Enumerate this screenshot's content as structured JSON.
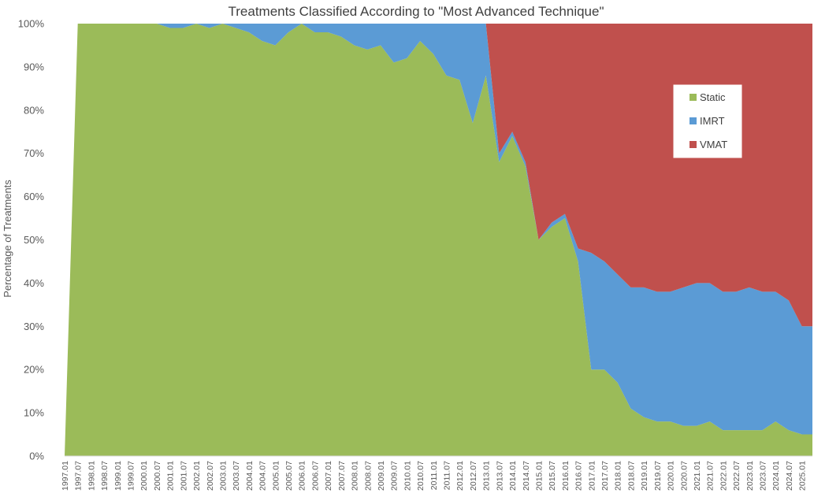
{
  "chart_data": {
    "type": "area",
    "stacked": true,
    "percent_stacked": true,
    "title": "Treatments Classified According to \"Most Advanced Technique\"",
    "xlabel": "",
    "ylabel": "Percentage of Treatments",
    "ylim": [
      0,
      100
    ],
    "y_ticks": [
      "0%",
      "10%",
      "20%",
      "30%",
      "40%",
      "50%",
      "60%",
      "70%",
      "80%",
      "90%",
      "100%"
    ],
    "x_ticks": [
      "1997.01",
      "1997.07",
      "1998.01",
      "1998.07",
      "1999.01",
      "1999.07",
      "2000.01",
      "2000.07",
      "2001.01",
      "2001.07",
      "2002.01",
      "2002.07",
      "2003.01",
      "2003.07",
      "2004.01",
      "2004.07",
      "2005.01",
      "2005.07",
      "2006.01",
      "2006.07",
      "2007.01",
      "2007.07",
      "2008.01",
      "2008.07",
      "2009.01",
      "2009.07",
      "2010.01",
      "2010.07",
      "2011.01",
      "2011.07",
      "2012.01",
      "2012.07",
      "2013.01",
      "2013.07",
      "2014.01",
      "2014.07",
      "2015.01",
      "2015.07",
      "2016.01",
      "2016.07",
      "2017.01",
      "2017.07",
      "2018.01",
      "2018.07",
      "2019.01",
      "2019.07",
      "2020.01",
      "2020.07",
      "2021.01",
      "2021.07",
      "2022.01",
      "2022.07",
      "2023.01",
      "2023.07",
      "2024.01",
      "2024.07",
      "2025.01"
    ],
    "legend": {
      "position": "right",
      "entries": [
        "Static",
        "IMRT",
        "VMAT"
      ]
    },
    "grid": false,
    "series": [
      {
        "name": "Static",
        "color": "#9BBB59",
        "points": [
          [
            "1997.01",
            0
          ],
          [
            "1997.07",
            100
          ],
          [
            "2000.07",
            100
          ],
          [
            "2001.01",
            99
          ],
          [
            "2001.07",
            99
          ],
          [
            "2002.01",
            100
          ],
          [
            "2002.07",
            99
          ],
          [
            "2003.01",
            100
          ],
          [
            "2003.07",
            99
          ],
          [
            "2004.01",
            98
          ],
          [
            "2004.07",
            96
          ],
          [
            "2005.01",
            95
          ],
          [
            "2005.07",
            98
          ],
          [
            "2006.01",
            100
          ],
          [
            "2006.07",
            98
          ],
          [
            "2007.01",
            98
          ],
          [
            "2007.07",
            97
          ],
          [
            "2008.01",
            95
          ],
          [
            "2008.07",
            94
          ],
          [
            "2009.01",
            95
          ],
          [
            "2009.07",
            91
          ],
          [
            "2010.01",
            92
          ],
          [
            "2010.07",
            96
          ],
          [
            "2011.01",
            93
          ],
          [
            "2011.07",
            88
          ],
          [
            "2012.01",
            87
          ],
          [
            "2012.07",
            77
          ],
          [
            "2013.01",
            88
          ],
          [
            "2013.07",
            68
          ],
          [
            "2014.01",
            74
          ],
          [
            "2014.07",
            67
          ],
          [
            "2015.01",
            50
          ],
          [
            "2015.07",
            53
          ],
          [
            "2016.01",
            55
          ],
          [
            "2016.07",
            45
          ],
          [
            "2017.01",
            20
          ],
          [
            "2017.07",
            20
          ],
          [
            "2018.01",
            17
          ],
          [
            "2018.07",
            11
          ],
          [
            "2019.01",
            9
          ],
          [
            "2019.07",
            8
          ],
          [
            "2020.01",
            8
          ],
          [
            "2020.07",
            7
          ],
          [
            "2021.01",
            7
          ],
          [
            "2021.07",
            8
          ],
          [
            "2022.01",
            6
          ],
          [
            "2022.07",
            6
          ],
          [
            "2023.01",
            6
          ],
          [
            "2023.07",
            6
          ],
          [
            "2024.01",
            8
          ],
          [
            "2024.07",
            6
          ],
          [
            "2025.01",
            5
          ]
        ]
      },
      {
        "name": "IMRT",
        "color": "#5B9BD5",
        "points": [
          [
            "1997.01",
            0
          ],
          [
            "1997.07",
            0
          ],
          [
            "2000.07",
            0
          ],
          [
            "2001.01",
            1
          ],
          [
            "2001.07",
            1
          ],
          [
            "2002.01",
            0
          ],
          [
            "2002.07",
            1
          ],
          [
            "2003.01",
            0
          ],
          [
            "2003.07",
            1
          ],
          [
            "2004.01",
            2
          ],
          [
            "2004.07",
            4
          ],
          [
            "2005.01",
            5
          ],
          [
            "2005.07",
            2
          ],
          [
            "2006.01",
            0
          ],
          [
            "2006.07",
            2
          ],
          [
            "2007.01",
            2
          ],
          [
            "2007.07",
            3
          ],
          [
            "2008.01",
            5
          ],
          [
            "2008.07",
            6
          ],
          [
            "2009.01",
            5
          ],
          [
            "2009.07",
            9
          ],
          [
            "2010.01",
            8
          ],
          [
            "2010.07",
            4
          ],
          [
            "2011.01",
            7
          ],
          [
            "2011.07",
            12
          ],
          [
            "2012.01",
            13
          ],
          [
            "2012.07",
            23
          ],
          [
            "2013.01",
            12
          ],
          [
            "2013.07",
            2
          ],
          [
            "2014.01",
            1
          ],
          [
            "2014.07",
            1
          ],
          [
            "2015.01",
            0
          ],
          [
            "2015.07",
            1
          ],
          [
            "2016.01",
            1
          ],
          [
            "2016.07",
            3
          ],
          [
            "2017.01",
            27
          ],
          [
            "2017.07",
            25
          ],
          [
            "2018.01",
            25
          ],
          [
            "2018.07",
            28
          ],
          [
            "2019.01",
            30
          ],
          [
            "2019.07",
            30
          ],
          [
            "2020.01",
            30
          ],
          [
            "2020.07",
            32
          ],
          [
            "2021.01",
            33
          ],
          [
            "2021.07",
            32
          ],
          [
            "2022.01",
            32
          ],
          [
            "2022.07",
            32
          ],
          [
            "2023.01",
            33
          ],
          [
            "2023.07",
            32
          ],
          [
            "2024.01",
            30
          ],
          [
            "2024.07",
            30
          ],
          [
            "2025.01",
            25
          ]
        ]
      },
      {
        "name": "VMAT",
        "color": "#C0504D",
        "points": [
          [
            "1997.01",
            0
          ],
          [
            "1997.07",
            0
          ],
          [
            "2000.07",
            0
          ],
          [
            "2001.01",
            0
          ],
          [
            "2001.07",
            0
          ],
          [
            "2002.01",
            0
          ],
          [
            "2002.07",
            0
          ],
          [
            "2003.01",
            0
          ],
          [
            "2003.07",
            0
          ],
          [
            "2004.01",
            0
          ],
          [
            "2004.07",
            0
          ],
          [
            "2005.01",
            0
          ],
          [
            "2005.07",
            0
          ],
          [
            "2006.01",
            0
          ],
          [
            "2006.07",
            0
          ],
          [
            "2007.01",
            0
          ],
          [
            "2007.07",
            0
          ],
          [
            "2008.01",
            0
          ],
          [
            "2008.07",
            0
          ],
          [
            "2009.01",
            0
          ],
          [
            "2009.07",
            0
          ],
          [
            "2010.01",
            0
          ],
          [
            "2010.07",
            0
          ],
          [
            "2011.01",
            0
          ],
          [
            "2011.07",
            0
          ],
          [
            "2012.01",
            0
          ],
          [
            "2012.07",
            0
          ],
          [
            "2013.01",
            0
          ],
          [
            "2013.07",
            30
          ],
          [
            "2014.01",
            25
          ],
          [
            "2014.07",
            32
          ],
          [
            "2015.01",
            50
          ],
          [
            "2015.07",
            46
          ],
          [
            "2016.01",
            44
          ],
          [
            "2016.07",
            52
          ],
          [
            "2017.01",
            53
          ],
          [
            "2017.07",
            55
          ],
          [
            "2018.01",
            58
          ],
          [
            "2018.07",
            61
          ],
          [
            "2019.01",
            61
          ],
          [
            "2019.07",
            62
          ],
          [
            "2020.01",
            62
          ],
          [
            "2020.07",
            61
          ],
          [
            "2021.01",
            60
          ],
          [
            "2021.07",
            60
          ],
          [
            "2022.01",
            62
          ],
          [
            "2022.07",
            62
          ],
          [
            "2023.01",
            61
          ],
          [
            "2023.07",
            62
          ],
          [
            "2024.01",
            62
          ],
          [
            "2024.07",
            64
          ],
          [
            "2025.01",
            70
          ]
        ]
      }
    ]
  }
}
